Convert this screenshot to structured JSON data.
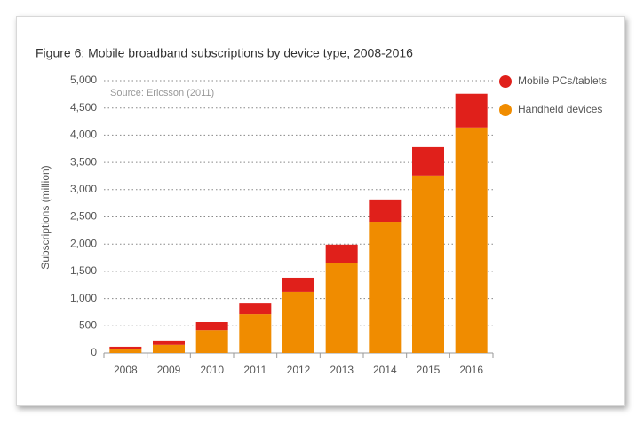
{
  "chart_data": {
    "type": "stacked-bar",
    "title": "Figure 6: Mobile broadband subscriptions by device type, 2008-2016",
    "annotation": "Source: Ericsson (2011)",
    "y_label": "Subscriptions (million)",
    "categories": [
      "2008",
      "2009",
      "2010",
      "2011",
      "2012",
      "2013",
      "2014",
      "2015",
      "2016"
    ],
    "series": [
      {
        "name": "Mobile PCs/tablets",
        "color": "#e0201b",
        "values": [
          45,
          80,
          150,
          195,
          260,
          330,
          410,
          520,
          620
        ]
      },
      {
        "name": "Handheld devices",
        "color": "#f08c00",
        "values": [
          70,
          150,
          420,
          715,
          1125,
          1660,
          2410,
          3260,
          4140
        ]
      }
    ],
    "stack_order": [
      1,
      0
    ],
    "ylim": [
      0,
      5000
    ],
    "yticks": [
      0,
      500,
      {
        "value": 1000,
        "label": "1,000"
      },
      {
        "value": 1500,
        "label": "1,500"
      },
      {
        "value": 2000,
        "label": "2,000"
      },
      {
        "value": 2500,
        "label": "2,500"
      },
      {
        "value": 3000,
        "label": "3,000"
      },
      {
        "value": 3500,
        "label": "3,500"
      },
      {
        "value": 4000,
        "label": "4,000"
      },
      {
        "value": 4500,
        "label": "4,500"
      },
      {
        "value": 5000,
        "label": "5,000"
      }
    ],
    "grid": true,
    "legend": "right"
  }
}
